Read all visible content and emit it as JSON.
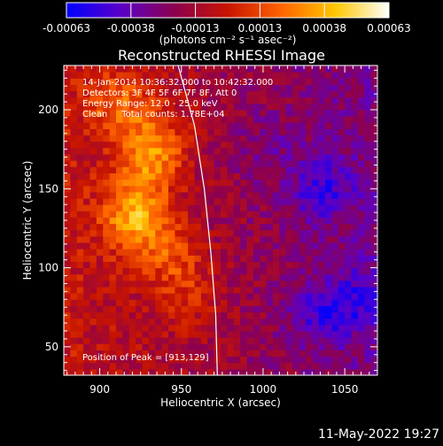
{
  "chart_data": {
    "type": "heatmap",
    "title": "Reconstructed RHESSI Image",
    "xlabel": "Heliocentric X (arcsec)",
    "ylabel": "Heliocentric Y (arcsec)",
    "xlim": [
      878,
      1070
    ],
    "ylim": [
      32,
      228
    ],
    "x_ticks": [
      900,
      950,
      1000,
      1050
    ],
    "y_ticks": [
      50,
      100,
      150,
      200
    ],
    "colorbar": {
      "min": -0.00063,
      "max": 0.00063,
      "ticks": [
        "-0.00063",
        "-0.00038",
        "-0.00013",
        "0.00013",
        "0.00038",
        "0.00063"
      ],
      "unit_label": "(photons cm⁻² s⁻¹ asec⁻²)",
      "colormap": [
        "#0000ff",
        "#5a00c8",
        "#8c0050",
        "#c81400",
        "#ff6400",
        "#ffc800",
        "#ffffff"
      ]
    },
    "annotations": [
      "14-Jan-2014 10:36:32.000 to 10:42:32.000",
      "Detectors: 3F 4F 5F 6F 7F 8F, Att 0",
      "Energy Range: 12.0 - 25.0 keV",
      "Clean     Total counts: 1.78E+04"
    ],
    "peak_label": "Position of Peak = [913,129]",
    "bright_ridge": [
      {
        "x": 912,
        "y": 205,
        "level": 0.25
      },
      {
        "x": 935,
        "y": 185,
        "level": 0.2
      },
      {
        "x": 930,
        "y": 165,
        "level": 0.35
      },
      {
        "x": 922,
        "y": 132,
        "level": 0.55
      },
      {
        "x": 942,
        "y": 110,
        "level": 0.2
      },
      {
        "x": 955,
        "y": 85,
        "level": 0.1
      },
      {
        "x": 960,
        "y": 65,
        "level": -0.1
      }
    ],
    "dark_regions": [
      {
        "x": 1035,
        "y": 150,
        "level": -0.55
      },
      {
        "x": 1035,
        "y": 70,
        "level": -0.5
      },
      {
        "x": 1060,
        "y": 80,
        "level": -0.45
      },
      {
        "x": 1000,
        "y": 175,
        "level": -0.3
      }
    ],
    "limb_curve": [
      {
        "x": 948,
        "y": 228
      },
      {
        "x": 958,
        "y": 190
      },
      {
        "x": 964,
        "y": 150
      },
      {
        "x": 968,
        "y": 110
      },
      {
        "x": 971,
        "y": 70
      },
      {
        "x": 972,
        "y": 32
      }
    ]
  },
  "footer": {
    "date": "11-May-2022 19:27"
  }
}
